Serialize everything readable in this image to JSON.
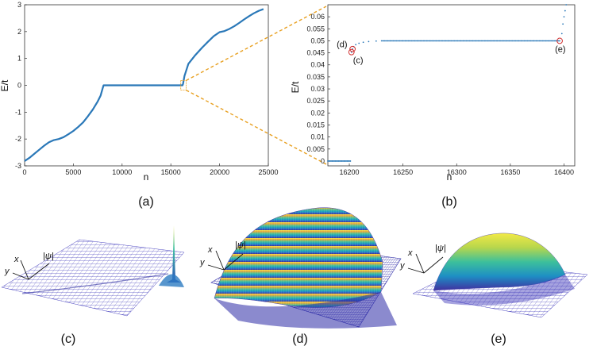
{
  "chart_data": [
    {
      "type": "line",
      "panel": "a",
      "caption": "(a)",
      "xlabel": "n",
      "ylabel": "E/t",
      "xlim": [
        0,
        25000
      ],
      "ylim": [
        -3,
        3
      ],
      "xticks": [
        0,
        5000,
        10000,
        15000,
        20000,
        25000
      ],
      "yticks": [
        -3,
        -2,
        -1,
        0,
        1,
        2,
        3
      ],
      "xtick_labels": [
        "0",
        "5000",
        "10000",
        "15000",
        "20000",
        "25000"
      ],
      "ytick_labels": [
        "-3",
        "-2",
        "-1",
        "0",
        "1",
        "2",
        "3"
      ],
      "grid": false,
      "color": "#2a78b8",
      "series": [
        {
          "x": [
            0,
            500,
            1000,
            1500,
            2000,
            2500,
            3000,
            3500,
            4000,
            4500,
            5000,
            5500,
            6000,
            6500,
            7000,
            7500,
            7800,
            8000,
            8100,
            8200,
            9000,
            10000,
            11000,
            12000,
            13000,
            14000,
            15000,
            16000,
            16200,
            16250,
            16400,
            16800,
            17500,
            18200,
            18800,
            19400,
            20000,
            20500,
            21000,
            21500,
            22000,
            22500,
            23000,
            23500,
            24000,
            24500
          ],
          "y": [
            -2.82,
            -2.7,
            -2.55,
            -2.4,
            -2.25,
            -2.12,
            -2.04,
            -2.0,
            -1.93,
            -1.82,
            -1.7,
            -1.55,
            -1.38,
            -1.15,
            -0.9,
            -0.6,
            -0.38,
            -0.12,
            0,
            0,
            0,
            0,
            0,
            0,
            0,
            0,
            0,
            0,
            0,
            0.05,
            0.35,
            0.8,
            1.12,
            1.4,
            1.62,
            1.83,
            1.98,
            2.02,
            2.1,
            2.2,
            2.32,
            2.45,
            2.57,
            2.68,
            2.77,
            2.84
          ]
        }
      ]
    },
    {
      "type": "scatter",
      "panel": "b",
      "caption": "(b)",
      "xlabel": "n",
      "ylabel": "E/t",
      "xlim": [
        16180,
        16410
      ],
      "ylim": [
        -0.002,
        0.065
      ],
      "xticks": [
        16200,
        16250,
        16300,
        16350,
        16400
      ],
      "yticks": [
        0,
        0.005,
        0.01,
        0.015,
        0.02,
        0.025,
        0.03,
        0.035,
        0.04,
        0.045,
        0.05,
        0.055,
        0.06
      ],
      "xtick_labels": [
        "16200",
        "16250",
        "16300",
        "16350",
        "16400"
      ],
      "ytick_labels": [
        "0",
        "0.005",
        "0.01",
        "0.015",
        "0.02",
        "0.025",
        "0.03",
        "0.035",
        "0.04",
        "0.045",
        "0.05",
        "0.055",
        "0.06"
      ],
      "grid": false,
      "color": "#2a78b8",
      "series": [
        {
          "zero_state_range": [
            16180,
            16201
          ],
          "edge_states": [
            {
              "x": 16202,
              "y": 0.0453
            },
            {
              "x": 16203,
              "y": 0.0466
            },
            {
              "x": 16204,
              "y": 0.0476
            },
            {
              "x": 16206,
              "y": 0.0484
            },
            {
              "x": 16209,
              "y": 0.049
            },
            {
              "x": 16213,
              "y": 0.0494
            },
            {
              "x": 16218,
              "y": 0.0497
            },
            {
              "x": 16225,
              "y": 0.0499
            }
          ],
          "plateau": {
            "x_start": 16230,
            "x_end": 16396,
            "y": 0.05
          },
          "upper_states": [
            {
              "x": 16398,
              "y": 0.053
            },
            {
              "x": 16399,
              "y": 0.057
            },
            {
              "x": 16400,
              "y": 0.06
            },
            {
              "x": 16401,
              "y": 0.0625
            },
            {
              "x": 16402,
              "y": 0.065
            }
          ]
        }
      ],
      "annotations": [
        {
          "label": "(d)",
          "x": 16203,
          "y": 0.0466
        },
        {
          "label": "(c)",
          "x": 16202,
          "y": 0.0453
        },
        {
          "label": "(e)",
          "x": 16396,
          "y": 0.05
        }
      ]
    }
  ],
  "zoom_link_color": "#e8a020",
  "surfaces": [
    {
      "caption": "(c)",
      "x_axis": "x",
      "y_axis": "y",
      "z_axis": "|ψ|"
    },
    {
      "caption": "(d)",
      "x_axis": "x",
      "y_axis": "y",
      "z_axis": "|ψ|"
    },
    {
      "caption": "(e)",
      "x_axis": "x",
      "y_axis": "y",
      "z_axis": "|ψ|"
    }
  ]
}
